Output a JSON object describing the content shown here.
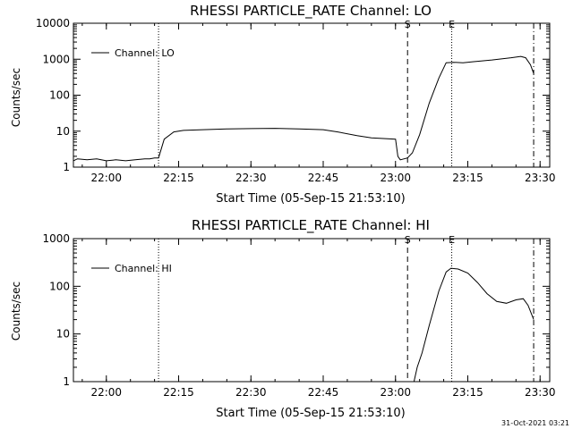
{
  "footer": {
    "timestamp": "31-Oct-2021 03:21"
  },
  "chart_data": [
    {
      "type": "line",
      "title": "RHESSI PARTICLE_RATE Channel: LO",
      "xlabel": "Start Time (05-Sep-15 21:53:10)",
      "ylabel": "Counts/sec",
      "yscale": "log",
      "xlim": [
        "21:53:10",
        "23:32:00"
      ],
      "ylim": [
        1,
        10000
      ],
      "x_ticks": [
        "22:00",
        "22:15",
        "22:30",
        "22:45",
        "23:00",
        "23:15",
        "23:30"
      ],
      "y_ticks": [
        "1",
        "10",
        "100",
        "1000",
        "10000"
      ],
      "legend": {
        "label": "Channel: LO",
        "position": "top-left"
      },
      "markers": [
        {
          "label": "",
          "time": "21:53:10",
          "style": "dotted"
        },
        {
          "label": "",
          "time": "22:10:50",
          "style": "dotted"
        },
        {
          "label": "S",
          "time": "23:02:30",
          "style": "dashed"
        },
        {
          "label": "E",
          "time": "23:11:40",
          "style": "dotted"
        },
        {
          "label": "",
          "time": "23:28:40",
          "style": "dash-dot"
        }
      ],
      "series": [
        {
          "name": "Channel: LO",
          "x": [
            "21:53:10",
            "21:54:00",
            "21:56:00",
            "21:58:00",
            "22:00:00",
            "22:02:00",
            "22:04:00",
            "22:06:00",
            "22:08:00",
            "22:09:00",
            "22:10:00",
            "22:10:50",
            "22:12:00",
            "22:14:00",
            "22:16:00",
            "22:20:00",
            "22:25:00",
            "22:30:00",
            "22:35:00",
            "22:40:00",
            "22:45:00",
            "22:48:00",
            "22:52:00",
            "22:55:00",
            "23:00:00",
            "23:00:30",
            "23:01:00",
            "23:02:30",
            "23:03:30",
            "23:05:00",
            "23:07:00",
            "23:09:00",
            "23:10:30",
            "23:12:00",
            "23:14:00",
            "23:16:00",
            "23:20:00",
            "23:24:00",
            "23:26:00",
            "23:27:00",
            "23:28:00",
            "23:28:40"
          ],
          "y": [
            1.5,
            1.7,
            1.6,
            1.7,
            1.5,
            1.6,
            1.5,
            1.6,
            1.7,
            1.7,
            1.8,
            1.8,
            6,
            9.5,
            10.5,
            11,
            11.5,
            11.8,
            12,
            11.5,
            11,
            9.5,
            7.5,
            6.5,
            6,
            2,
            1.6,
            1.8,
            2.5,
            8,
            60,
            300,
            800,
            820,
            800,
            850,
            950,
            1100,
            1200,
            1100,
            700,
            400
          ]
        }
      ]
    },
    {
      "type": "line",
      "title": "RHESSI PARTICLE_RATE Channel: HI",
      "xlabel": "Start Time (05-Sep-15 21:53:10)",
      "ylabel": "Counts/sec",
      "yscale": "log",
      "xlim": [
        "21:53:10",
        "23:32:00"
      ],
      "ylim": [
        1,
        1000
      ],
      "x_ticks": [
        "22:00",
        "22:15",
        "22:30",
        "22:45",
        "23:00",
        "23:15",
        "23:30"
      ],
      "y_ticks": [
        "1",
        "10",
        "100",
        "1000"
      ],
      "legend": {
        "label": "Channel: HI",
        "position": "top-left"
      },
      "markers": [
        {
          "label": "",
          "time": "21:53:10",
          "style": "dotted"
        },
        {
          "label": "",
          "time": "22:10:50",
          "style": "dotted"
        },
        {
          "label": "S",
          "time": "23:02:30",
          "style": "dashed"
        },
        {
          "label": "E",
          "time": "23:11:40",
          "style": "dotted"
        },
        {
          "label": "",
          "time": "23:28:40",
          "style": "dash-dot"
        }
      ],
      "series": [
        {
          "name": "Channel: HI",
          "x": [
            "23:03:50",
            "23:04:30",
            "23:05:30",
            "23:07:00",
            "23:09:00",
            "23:10:30",
            "23:11:30",
            "23:13:00",
            "23:15:00",
            "23:17:00",
            "23:19:00",
            "23:21:00",
            "23:23:00",
            "23:25:00",
            "23:26:30",
            "23:27:30",
            "23:28:40"
          ],
          "y": [
            1,
            2,
            4,
            15,
            80,
            200,
            240,
            230,
            190,
            120,
            70,
            48,
            44,
            52,
            55,
            40,
            20
          ]
        }
      ]
    }
  ]
}
